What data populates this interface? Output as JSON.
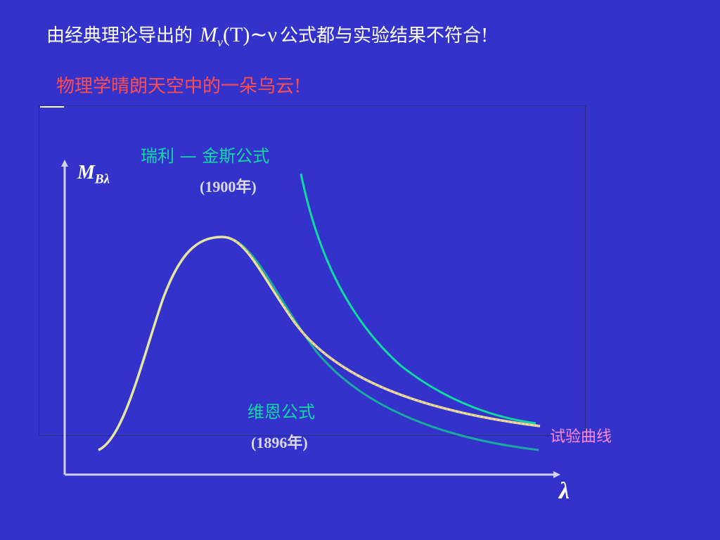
{
  "title": {
    "prefix": "由经典理论导出的",
    "formula_symbol": "M",
    "formula_subscript": "ν",
    "formula_arg": "(T)",
    "formula_tilde": "∼ν",
    "suffix": "公式都与实验结果不符合!"
  },
  "subtitle": "物理学晴朗天空中的一朵乌云!",
  "axes": {
    "y_label": "M",
    "y_label_sub": "Bλ",
    "x_label": "λ"
  },
  "curves": {
    "rayleigh_jeans": {
      "label": "瑞利 — 金斯公式",
      "year": "(1900年)",
      "color": "#11d9a0"
    },
    "wien": {
      "label": "维恩公式",
      "year": "(1896年)",
      "color": "#1aaaa0"
    },
    "experimental": {
      "label": "试验曲线",
      "color": "#e6e6a0"
    }
  },
  "colors": {
    "background": "#3333cc",
    "axis": "#d0d0f0"
  }
}
